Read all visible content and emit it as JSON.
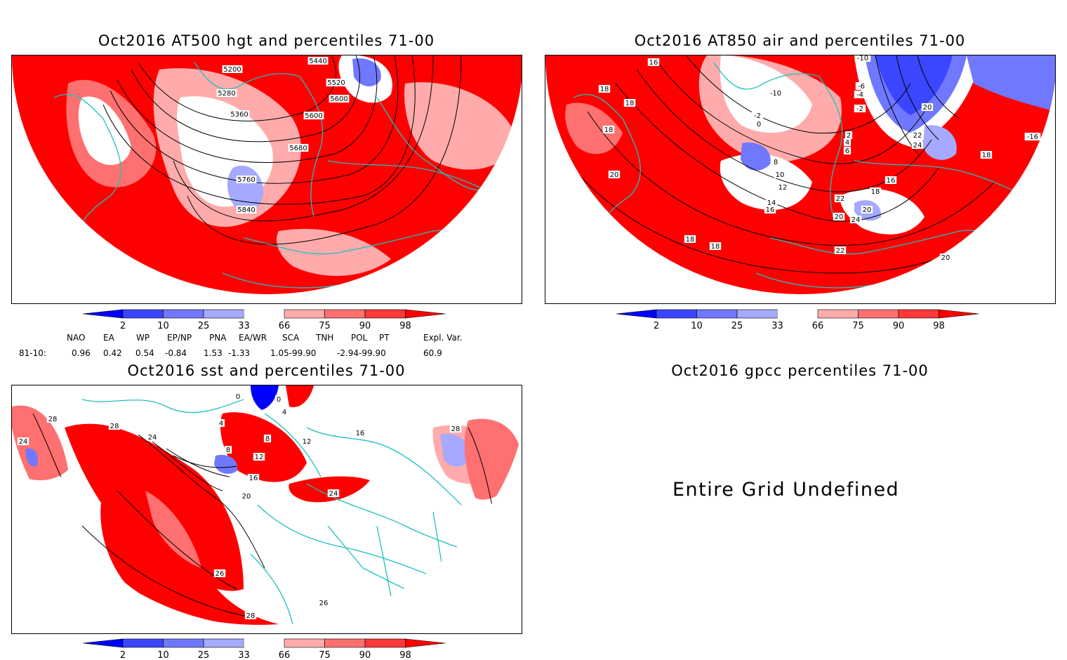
{
  "panels": {
    "p1": {
      "title": "Oct2016 AT500 hgt and percentiles 71-00",
      "contour_labels": [
        "5200",
        "5280",
        "5360",
        "5440",
        "5520",
        "5600",
        "5600",
        "5680",
        "5760",
        "5840"
      ]
    },
    "p2": {
      "title": "Oct2016 AT850 air and percentiles 71-00",
      "contour_labels": [
        "16",
        "18",
        "18",
        "18",
        "18",
        "18",
        "20",
        "20",
        "-10",
        "-10",
        "-6",
        "-4",
        "-2",
        "-2",
        "0",
        "2",
        "4",
        "6",
        "8",
        "10",
        "12",
        "14",
        "16",
        "16",
        "18",
        "20",
        "20",
        "22",
        "22",
        "22",
        "24",
        "24",
        "-16",
        "18",
        "20"
      ]
    },
    "p3": {
      "title": "Oct2016 sst and percentiles 71-00",
      "contour_labels": [
        "28",
        "24",
        "28",
        "24",
        "0",
        "0",
        "4",
        "4",
        "8",
        "8",
        "12",
        "12",
        "16",
        "16",
        "20",
        "24",
        "26",
        "26",
        "28",
        "28"
      ]
    },
    "p4": {
      "title": "Oct2016 gpcc percentiles 71-00",
      "message": "Entire Grid Undefined"
    }
  },
  "colorbar": {
    "labels": [
      "2",
      "10",
      "25",
      "33",
      "66",
      "75",
      "90",
      "98"
    ],
    "colors": [
      "#0000ff",
      "#3a46ff",
      "#6f78ff",
      "#a5a9ff",
      "#ffffff",
      "#ffabab",
      "#ff7070",
      "#ff3838",
      "#ff0000"
    ]
  },
  "teleconnections": {
    "headers": [
      "NAO",
      "EA",
      "WP",
      "EP/NP",
      "PNA",
      "EA/WR",
      "SCA",
      "TNH",
      "POL",
      "PT",
      "Expl. Var."
    ],
    "row_label": "81-10:",
    "values": [
      "0.96",
      "0.42",
      "0.54",
      "-0.84",
      "1.53",
      "-1.33",
      "1.05-99.90",
      "-2.94-99.90",
      "60.9"
    ]
  },
  "colors": {
    "coast": "#1fbfbf",
    "contour": "#000000",
    "red": "#ff0000",
    "blue": "#0000ff"
  }
}
